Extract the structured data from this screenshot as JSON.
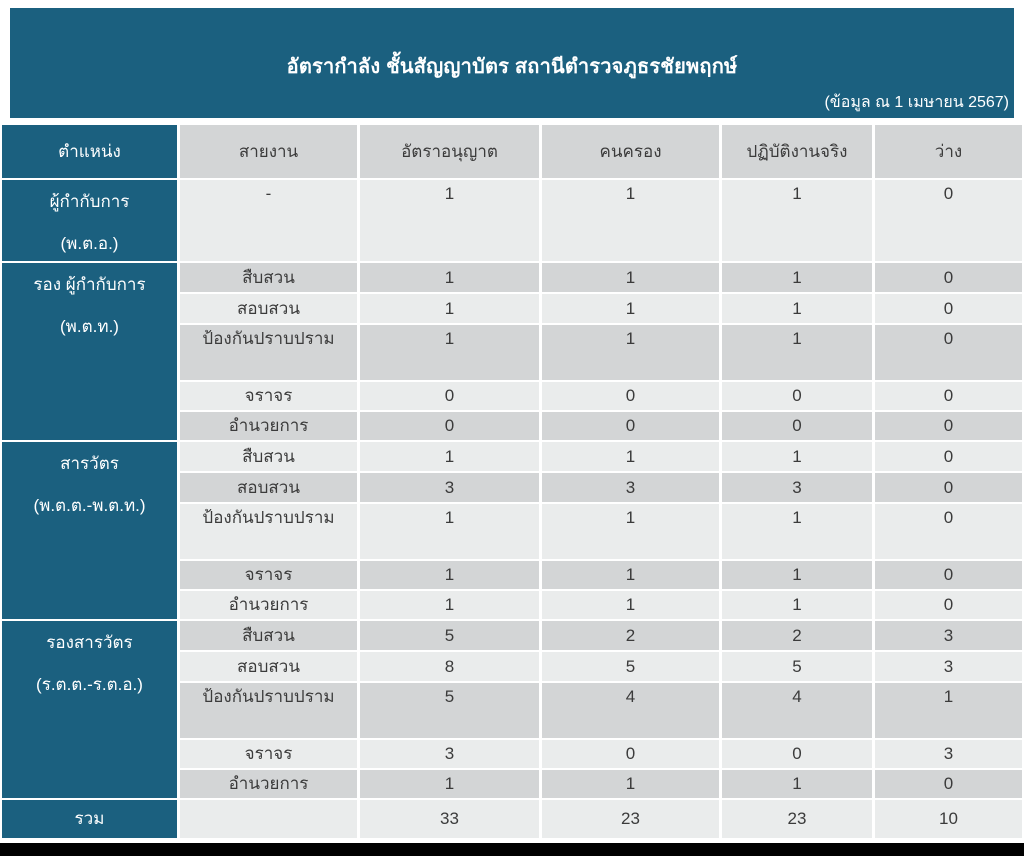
{
  "title_block": {
    "title": "อัตรากำลัง ชั้นสัญญาบัตร สถานีตำรวจภูธรชัยพฤกษ์",
    "subtitle": "(ข้อมูล ณ 1 เมษายน 2567)"
  },
  "table": {
    "headers": [
      "ตำแหน่ง",
      "สายงาน",
      "อัตราอนุญาต",
      "คนครอง",
      "ปฏิบัติงานจริง",
      "ว่าง"
    ],
    "sections": [
      {
        "position": "ผู้กำกับการ",
        "rank": "(พ.ต.อ.)",
        "rows": [
          {
            "unit": "-",
            "authorized": "1",
            "occupied": "1",
            "actual": "1",
            "vacant": "0"
          }
        ]
      },
      {
        "position": "รอง ผู้กำกับการ",
        "rank": "(พ.ต.ท.)",
        "rows": [
          {
            "unit": "สืบสวน",
            "authorized": "1",
            "occupied": "1",
            "actual": "1",
            "vacant": "0"
          },
          {
            "unit": "สอบสวน",
            "authorized": "1",
            "occupied": "1",
            "actual": "1",
            "vacant": "0"
          },
          {
            "unit": "ป้องกันปราบปราม",
            "authorized": "1",
            "occupied": "1",
            "actual": "1",
            "vacant": "0"
          },
          {
            "unit": "จราจร",
            "authorized": "0",
            "occupied": "0",
            "actual": "0",
            "vacant": "0"
          },
          {
            "unit": "อำนวยการ",
            "authorized": "0",
            "occupied": "0",
            "actual": "0",
            "vacant": "0"
          }
        ]
      },
      {
        "position": "สารวัตร",
        "rank": "(พ.ต.ต.-พ.ต.ท.)",
        "rows": [
          {
            "unit": "สืบสวน",
            "authorized": "1",
            "occupied": "1",
            "actual": "1",
            "vacant": "0"
          },
          {
            "unit": "สอบสวน",
            "authorized": "3",
            "occupied": "3",
            "actual": "3",
            "vacant": "0"
          },
          {
            "unit": "ป้องกันปราบปราม",
            "authorized": "1",
            "occupied": "1",
            "actual": "1",
            "vacant": "0"
          },
          {
            "unit": "จราจร",
            "authorized": "1",
            "occupied": "1",
            "actual": "1",
            "vacant": "0"
          },
          {
            "unit": "อำนวยการ",
            "authorized": "1",
            "occupied": "1",
            "actual": "1",
            "vacant": "0"
          }
        ]
      },
      {
        "position": "รองสารวัตร",
        "rank": "(ร.ต.ต.-ร.ต.อ.)",
        "rows": [
          {
            "unit": "สืบสวน",
            "authorized": "5",
            "occupied": "2",
            "actual": "2",
            "vacant": "3"
          },
          {
            "unit": "สอบสวน",
            "authorized": "8",
            "occupied": "5",
            "actual": "5",
            "vacant": "3"
          },
          {
            "unit": "ป้องกันปราบปราม",
            "authorized": "5",
            "occupied": "4",
            "actual": "4",
            "vacant": "1"
          },
          {
            "unit": "จราจร",
            "authorized": "3",
            "occupied": "0",
            "actual": "0",
            "vacant": "3"
          },
          {
            "unit": "อำนวยการ",
            "authorized": "1",
            "occupied": "1",
            "actual": "1",
            "vacant": "0"
          }
        ]
      }
    ],
    "total": {
      "label": "รวม",
      "authorized": "33",
      "occupied": "23",
      "actual": "23",
      "vacant": "10"
    }
  },
  "colors": {
    "header_teal": "#1b607f",
    "row_dark": "#d3d5d6",
    "row_light": "#eaecec",
    "text": "#3b3b3b"
  }
}
